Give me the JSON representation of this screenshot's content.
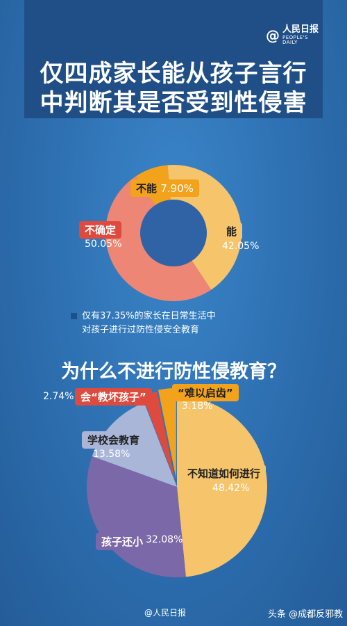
{
  "header": {
    "logo_mark": "@",
    "logo_cn": "人民日报",
    "logo_en": "PEOPLE'S DAILY",
    "title_line1": "仅四成家长能从孩子言行",
    "title_line2": "中判断其是否受到性侵害"
  },
  "note": {
    "line1": "仅有37.35%的家长在日常生活中",
    "line2": "对孩子进行过防性侵安全教育"
  },
  "subtitle": "为什么不进行防性侵教育？",
  "footer": {
    "left": "@人民日报",
    "right": "头条 @成都反邪教"
  },
  "chart_data": [
    {
      "type": "pie",
      "variant": "donut",
      "slices": [
        {
          "label": "能",
          "value": 42.05,
          "display": "42.05%",
          "color": "#f6c46a"
        },
        {
          "label": "不确定",
          "value": 50.05,
          "display": "50.05%",
          "color": "#ee8676"
        },
        {
          "label": "不能",
          "value": 7.9,
          "display": "7.90%",
          "color": "#f3a21c"
        }
      ],
      "center_color": "#2f63a6"
    },
    {
      "type": "pie",
      "title": "为什么不进行防性侵教育？",
      "slices": [
        {
          "label": "不知道如何进行",
          "value": 48.42,
          "display": "48.42%",
          "color": "#f6c46a"
        },
        {
          "label": "孩子还小",
          "value": 32.08,
          "display": "32.08%",
          "color": "#7b68a8"
        },
        {
          "label": "学校会教育",
          "value": 13.58,
          "display": "13.58%",
          "color": "#a9b6d8"
        },
        {
          "label": "会“教坏孩子”",
          "value": 2.74,
          "display": "2.74%",
          "color": "#de4b3e"
        },
        {
          "label": "“难以启齿”",
          "value": 3.18,
          "display": "3.18%",
          "color": "#f3a21c"
        }
      ]
    }
  ]
}
